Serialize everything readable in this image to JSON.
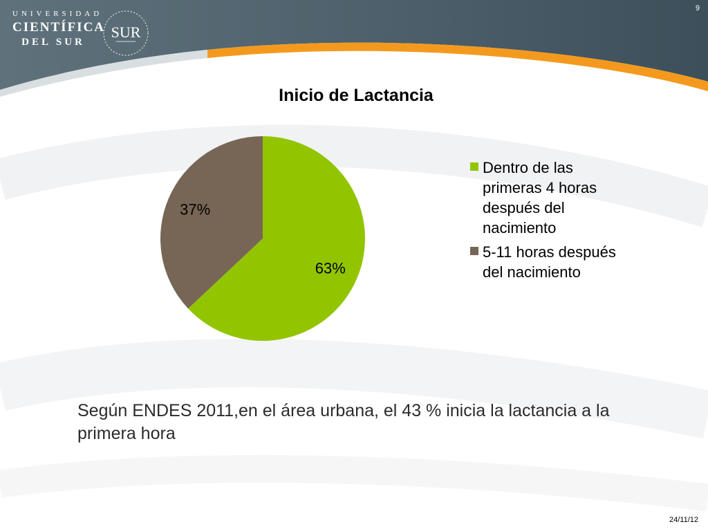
{
  "header": {
    "logo_line1": "UNIVERSIDAD",
    "logo_line2": "CIENTÍFICA",
    "logo_line3": "DEL SUR",
    "seal_text": "SUR",
    "slide_number": "9"
  },
  "colors": {
    "header_dark": "#4a5c66",
    "accent_orange": "#f39a1e",
    "slice_green": "#92c500",
    "slice_brown": "#776655"
  },
  "chart_data": {
    "type": "pie",
    "title": "Inicio de Lactancia",
    "categories": [
      "Dentro de las primeras 4 horas después del nacimiento",
      "5-11 horas después del nacimiento"
    ],
    "values": [
      63,
      37
    ],
    "data_labels": [
      "63%",
      "37%"
    ],
    "legend_position": "right"
  },
  "body": {
    "caption": "Según ENDES 2011,en el área urbana, el 43 % inicia la lactancia a la primera hora"
  },
  "footer": {
    "date": "24/11/12"
  }
}
